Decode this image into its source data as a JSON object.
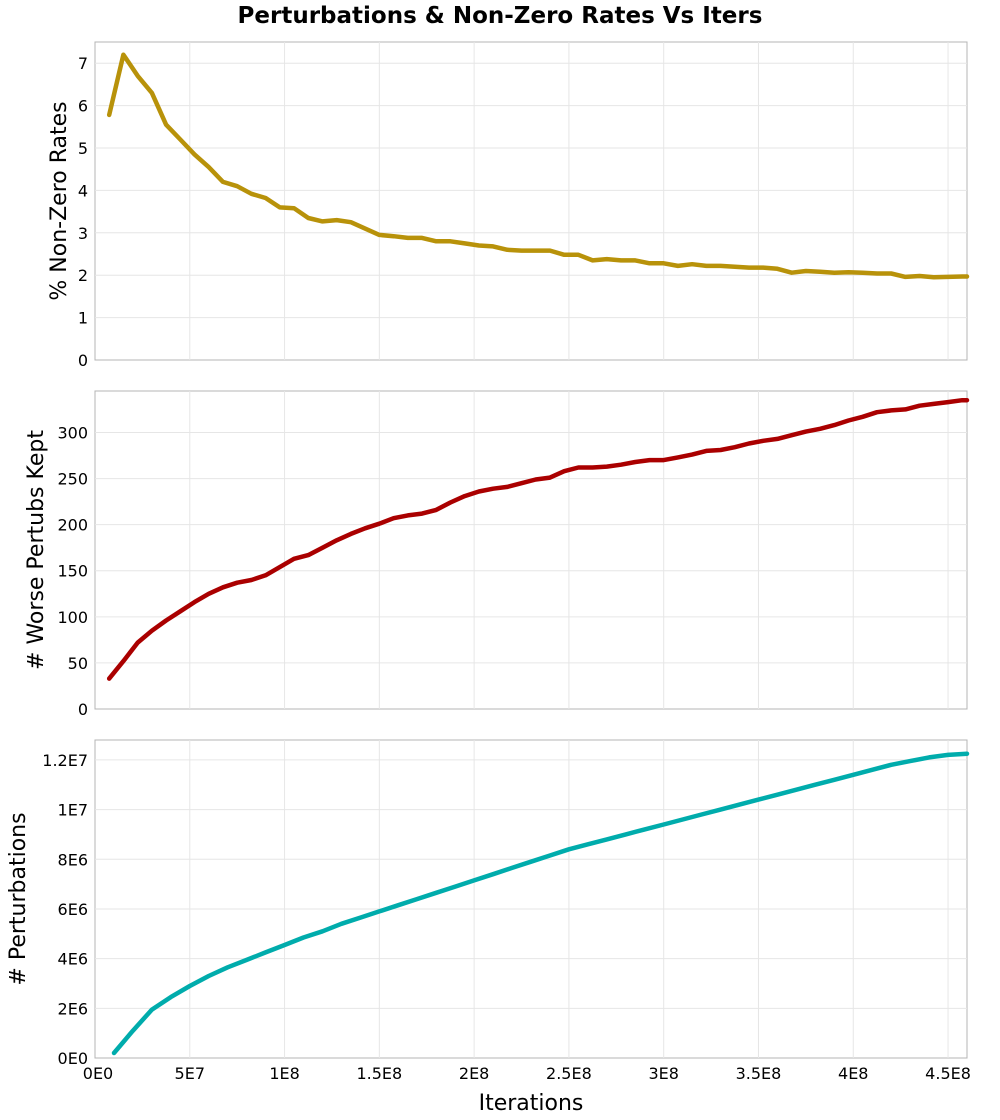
{
  "chart_data": [
    {
      "type": "line",
      "title": "Perturbations & Non-Zero Rates Vs Iters",
      "panel": "top",
      "ylabel": "% Non-Zero Rates",
      "xlabel": "",
      "color": "#b8920a",
      "xlim": [
        0,
        460000000
      ],
      "ylim": [
        0,
        7.5
      ],
      "yticks": [
        0,
        1,
        2,
        3,
        4,
        5,
        6,
        7
      ],
      "ytick_labels": [
        "0",
        "1",
        "2",
        "3",
        "4",
        "5",
        "6",
        "7"
      ],
      "x": [
        7500000,
        15000000,
        22500000,
        30000000,
        37500000,
        45000000,
        52500000,
        60000000,
        67500000,
        75000000,
        82500000,
        90000000,
        97500000,
        105000000,
        112500000,
        120000000,
        127500000,
        135000000,
        142500000,
        150000000,
        157500000,
        165000000,
        172500000,
        180000000,
        187500000,
        195000000,
        202500000,
        210000000,
        217500000,
        225000000,
        232500000,
        240000000,
        247500000,
        255000000,
        262500000,
        270000000,
        277500000,
        285000000,
        292500000,
        300000000,
        307500000,
        315000000,
        322500000,
        330000000,
        337500000,
        345000000,
        352500000,
        360000000,
        367500000,
        375000000,
        382500000,
        390000000,
        397500000,
        405000000,
        412500000,
        420000000,
        427500000,
        435000000,
        442500000,
        450000000,
        457500000,
        460000000
      ],
      "y": [
        5.78,
        7.2,
        6.7,
        6.3,
        5.55,
        5.2,
        4.85,
        4.55,
        4.2,
        4.1,
        3.92,
        3.82,
        3.6,
        3.58,
        3.35,
        3.27,
        3.3,
        3.25,
        3.1,
        2.95,
        2.92,
        2.88,
        2.88,
        2.8,
        2.8,
        2.75,
        2.7,
        2.68,
        2.6,
        2.58,
        2.58,
        2.58,
        2.48,
        2.48,
        2.35,
        2.38,
        2.35,
        2.35,
        2.28,
        2.28,
        2.22,
        2.26,
        2.22,
        2.22,
        2.2,
        2.18,
        2.18,
        2.15,
        2.06,
        2.1,
        2.08,
        2.06,
        2.07,
        2.06,
        2.04,
        2.04,
        1.96,
        1.98,
        1.95,
        1.96,
        1.97,
        1.97
      ]
    },
    {
      "type": "line",
      "panel": "middle",
      "ylabel": "# Worse Pertubs Kept",
      "xlabel": "",
      "color": "#aa0000",
      "xlim": [
        0,
        460000000
      ],
      "ylim": [
        0,
        345
      ],
      "yticks": [
        0,
        50,
        100,
        150,
        200,
        250,
        300
      ],
      "ytick_labels": [
        "0",
        "50",
        "100",
        "150",
        "200",
        "250",
        "300"
      ],
      "x": [
        7500000,
        15000000,
        22500000,
        30000000,
        37500000,
        45000000,
        52500000,
        60000000,
        67500000,
        75000000,
        82500000,
        90000000,
        97500000,
        105000000,
        112500000,
        120000000,
        127500000,
        135000000,
        142500000,
        150000000,
        157500000,
        165000000,
        172500000,
        180000000,
        187500000,
        195000000,
        202500000,
        210000000,
        217500000,
        225000000,
        232500000,
        240000000,
        247500000,
        255000000,
        262500000,
        270000000,
        277500000,
        285000000,
        292500000,
        300000000,
        307500000,
        315000000,
        322500000,
        330000000,
        337500000,
        345000000,
        352500000,
        360000000,
        367500000,
        375000000,
        382500000,
        390000000,
        397500000,
        405000000,
        412500000,
        420000000,
        427500000,
        435000000,
        442500000,
        450000000,
        457500000,
        460000000
      ],
      "y": [
        33,
        52,
        72,
        85,
        96,
        106,
        116,
        125,
        132,
        137,
        140,
        145,
        154,
        163,
        167,
        175,
        183,
        190,
        196,
        201,
        207,
        210,
        212,
        216,
        224,
        231,
        236,
        239,
        241,
        245,
        249,
        251,
        258,
        262,
        262,
        263,
        265,
        268,
        270,
        270,
        273,
        276,
        280,
        281,
        284,
        288,
        291,
        293,
        297,
        301,
        304,
        308,
        313,
        317,
        322,
        324,
        325,
        329,
        331,
        333,
        335,
        335
      ]
    },
    {
      "type": "line",
      "panel": "bottom",
      "ylabel": "# Perturbations",
      "xlabel": "Iterations",
      "color": "#00acac",
      "xlim": [
        0,
        460000000
      ],
      "ylim": [
        0,
        12800000
      ],
      "yticks": [
        0,
        2000000,
        4000000,
        6000000,
        8000000,
        10000000,
        12000000
      ],
      "ytick_labels": [
        "0E0",
        "2E6",
        "4E6",
        "6E6",
        "8E6",
        "1E7",
        "1.2E7"
      ],
      "xticks": [
        0,
        50000000,
        100000000,
        150000000,
        200000000,
        250000000,
        300000000,
        350000000,
        400000000,
        450000000
      ],
      "xtick_labels": [
        "0E0",
        "5E7",
        "1E8",
        "1.5E8",
        "2E8",
        "2.5E8",
        "3E8",
        "3.5E8",
        "4E8",
        "4.5E8"
      ],
      "x": [
        10000000,
        20000000,
        30000000,
        40000000,
        50000000,
        60000000,
        70000000,
        80000000,
        90000000,
        100000000,
        110000000,
        120000000,
        130000000,
        140000000,
        150000000,
        160000000,
        170000000,
        180000000,
        190000000,
        200000000,
        210000000,
        220000000,
        230000000,
        240000000,
        250000000,
        260000000,
        270000000,
        280000000,
        290000000,
        300000000,
        310000000,
        320000000,
        330000000,
        340000000,
        350000000,
        360000000,
        370000000,
        380000000,
        390000000,
        400000000,
        410000000,
        420000000,
        430000000,
        440000000,
        450000000,
        460000000
      ],
      "y": [
        200000,
        1100000,
        1950000,
        2450000,
        2900000,
        3300000,
        3650000,
        3950000,
        4250000,
        4550000,
        4850000,
        5100000,
        5400000,
        5650000,
        5900000,
        6150000,
        6400000,
        6650000,
        6900000,
        7150000,
        7400000,
        7650000,
        7900000,
        8150000,
        8400000,
        8600000,
        8800000,
        9000000,
        9200000,
        9400000,
        9600000,
        9800000,
        10000000,
        10200000,
        10400000,
        10600000,
        10800000,
        11000000,
        11200000,
        11400000,
        11600000,
        11800000,
        11950000,
        12100000,
        12200000,
        12250000
      ]
    }
  ]
}
